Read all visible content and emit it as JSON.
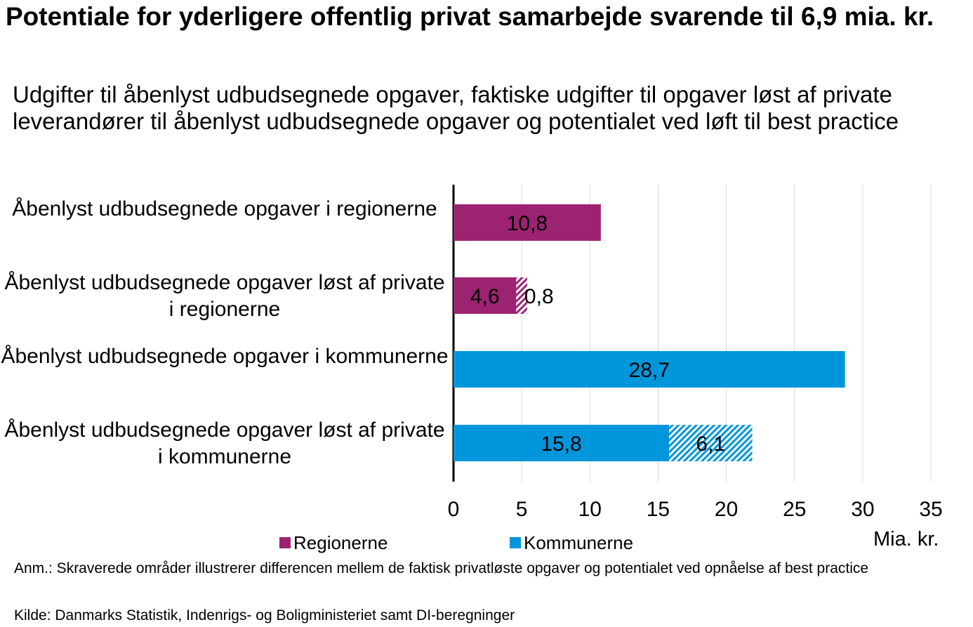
{
  "title": "Potentiale for yderligere offentlig privat samarbejde svarende til 6,9 mia. kr.",
  "subtitle": "Udgifter til åbenlyst udbudsegnede opgaver, faktiske udgifter til opgaver løst af private leverandører til åbenlyst udbudsegnede opgaver og potentialet ved løft til best practice",
  "note": "Anm.: Skraverede områder illustrerer differencen mellem de faktisk privatløste opgaver og potentialet ved opnåelse af best practice",
  "source": "Kilde: Danmarks Statistik, Indenrigs- og Boligministeriet samt DI-beregninger",
  "colors": {
    "regionerne": "#9B2372",
    "kommunerne": "#0096DB",
    "grid": "#D9D9D9",
    "axis": "#000000"
  },
  "chart_data": {
    "type": "bar",
    "orientation": "horizontal",
    "stacked": true,
    "categories": [
      "Åbenlyst udbudsegnede opgaver i regionerne",
      "Åbenlyst udbudsegnede opgaver løst af private i regionerne",
      "Åbenlyst udbudsegnede opgaver i kommunerne",
      "Åbenlyst udbudsegnede opgaver løst af private i kommunerne"
    ],
    "bars": [
      {
        "region": "regionerne",
        "solid": 10.8,
        "solid_label": "10,8",
        "hatched": 0,
        "hatched_label": ""
      },
      {
        "region": "regionerne",
        "solid": 4.6,
        "solid_label": "4,6",
        "hatched": 0.8,
        "hatched_label": "0,8"
      },
      {
        "region": "kommunerne",
        "solid": 28.7,
        "solid_label": "28,7",
        "hatched": 0,
        "hatched_label": ""
      },
      {
        "region": "kommunerne",
        "solid": 15.8,
        "solid_label": "15,8",
        "hatched": 6.1,
        "hatched_label": "6,1"
      }
    ],
    "legend": [
      {
        "key": "regionerne",
        "label": "Regionerne"
      },
      {
        "key": "kommunerne",
        "label": "Kommunerne"
      }
    ],
    "xlim": [
      0,
      35
    ],
    "xticks": [
      0,
      5,
      10,
      15,
      20,
      25,
      30,
      35
    ],
    "xunit": "Mia. kr.",
    "grid": true
  }
}
